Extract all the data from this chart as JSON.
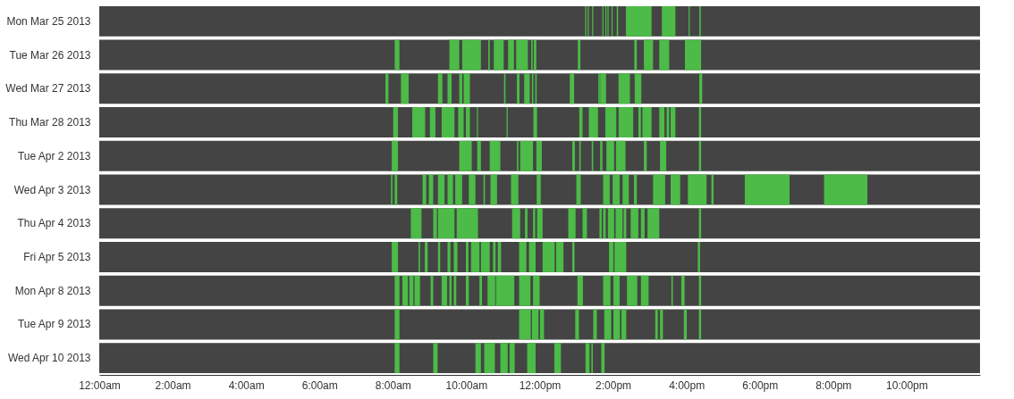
{
  "chart_data": {
    "type": "bar",
    "orientation": "horizontal",
    "grid": false,
    "legend": false,
    "categories": [
      "Mon Mar 25 2013",
      "Tue Mar 26 2013",
      "Wed Mar 27 2013",
      "Thu Mar 28 2013",
      "Tue Apr 2 2013",
      "Wed Apr 3 2013",
      "Thu Apr 4 2013",
      "Fri Apr 5 2013",
      "Mon Apr 8 2013",
      "Tue Apr 9 2013",
      "Wed Apr 10 2013"
    ],
    "xlim": [
      0,
      24
    ],
    "xticks": [
      {
        "value": 0,
        "label": "12:00am"
      },
      {
        "value": 2,
        "label": "2:00am"
      },
      {
        "value": 4,
        "label": "4:00am"
      },
      {
        "value": 6,
        "label": "6:00am"
      },
      {
        "value": 8,
        "label": "8:00am"
      },
      {
        "value": 10,
        "label": "10:00am"
      },
      {
        "value": 12,
        "label": "12:00pm"
      },
      {
        "value": 14,
        "label": "2:00pm"
      },
      {
        "value": 16,
        "label": "4:00pm"
      },
      {
        "value": 18,
        "label": "6:00pm"
      },
      {
        "value": 20,
        "label": "8:00pm"
      },
      {
        "value": 22,
        "label": "10:00pm"
      }
    ],
    "series": [
      {
        "color": "#444444",
        "base": [
          0,
          0,
          0,
          0,
          0,
          0,
          0,
          0,
          0,
          0,
          0
        ],
        "values": [
          24,
          24,
          24,
          24,
          24,
          24,
          24,
          24,
          24,
          24,
          24
        ]
      },
      {
        "color": "#4cbb47",
        "base": [
          13.24,
          8.05,
          7.8,
          8.01,
          7.97,
          7.95,
          8.49,
          7.97,
          8.05,
          8.05,
          8.05
        ],
        "values": [
          0.03,
          0.13,
          0.08,
          0.13,
          0.17,
          0.04,
          0.29,
          0.17,
          0.13,
          0.13,
          0.13
        ]
      },
      {
        "color": "#4cbb47",
        "base": [
          13.31,
          9.54,
          8.22,
          8.53,
          9.81,
          8.05,
          9.1,
          8.7,
          8.26,
          11.44,
          9.1
        ],
        "values": [
          0.03,
          0.27,
          0.21,
          0.35,
          0.34,
          0.07,
          0.1,
          0.04,
          0.15,
          0.32,
          0.12
        ]
      },
      {
        "color": "#4cbb47",
        "base": [
          13.43,
          9.89,
          9.23,
          9.01,
          10.3,
          8.81,
          9.23,
          8.87,
          8.45,
          11.79,
          10.25
        ],
        "values": [
          0.03,
          0.51,
          0.12,
          0.15,
          0.1,
          0.1,
          0.45,
          0.08,
          0.11,
          0.18,
          0.15
        ]
      },
      {
        "color": "#4cbb47",
        "base": [
          13.71,
          10.6,
          9.49,
          9.33,
          10.64,
          8.98,
          9.74,
          9.23,
          8.59,
          12.01,
          10.49
        ],
        "values": [
          0.03,
          0.04,
          0.11,
          0.35,
          0.29,
          0.12,
          0.58,
          0.06,
          0.15,
          0.11,
          0.29
        ]
      },
      {
        "color": "#4cbb47",
        "base": [
          13.79,
          10.75,
          9.81,
          9.78,
          11.38,
          9.23,
          11.25,
          9.49,
          9.03,
          12.97,
          10.93
        ],
        "values": [
          0.03,
          0.27,
          0.08,
          0.15,
          0.04,
          0.18,
          0.22,
          0.08,
          0.07,
          0.1,
          0.2
        ]
      },
      {
        "color": "#4cbb47",
        "base": [
          13.85,
          11.14,
          9.93,
          9.99,
          11.47,
          9.49,
          11.6,
          9.66,
          9.33,
          13.46,
          11.18
        ],
        "values": [
          0.03,
          0.16,
          0.17,
          0.11,
          0.35,
          0.15,
          0.07,
          0.1,
          0.15,
          0.1,
          0.14
        ]
      },
      {
        "color": "#4cbb47",
        "base": [
          13.96,
          11.36,
          11.03,
          10.29,
          11.91,
          9.7,
          11.82,
          9.99,
          9.54,
          13.76,
          11.66
        ],
        "values": [
          0.03,
          0.32,
          0.04,
          0.03,
          0.15,
          0.19,
          0.06,
          0.07,
          0.06,
          0.19,
          0.23
        ]
      },
      {
        "color": "#4cbb47",
        "base": [
          14.1,
          11.77,
          11.38,
          11.1,
          12.89,
          10.07,
          11.93,
          10.13,
          9.66,
          14.01,
          12.4
        ],
        "values": [
          0.04,
          0.04,
          0.07,
          0.03,
          0.07,
          0.18,
          0.15,
          0.23,
          0.07,
          0.18,
          0.18
        ]
      },
      {
        "color": "#4cbb47",
        "base": [
          14.35,
          11.84,
          11.58,
          11.83,
          13.08,
          10.47,
          12.78,
          10.4,
          9.99,
          14.23,
          13.25
        ],
        "values": [
          0.7,
          0.07,
          0.15,
          0.1,
          0.04,
          0.04,
          0.2,
          0.24,
          0.08,
          0.13,
          0.11
        ]
      },
      {
        "color": "#4cbb47",
        "base": [
          15.33,
          13.04,
          11.79,
          13.08,
          13.42,
          10.66,
          13.17,
          10.73,
          10.36,
          15.15,
          13.41
        ],
        "values": [
          0.37,
          0.07,
          0.04,
          0.09,
          0.04,
          0.18,
          0.12,
          0.07,
          0.07,
          0.07,
          0.04
        ]
      },
      {
        "color": "#4cbb47",
        "base": [
          16.06,
          14.58,
          11.88,
          13.34,
          13.65,
          11.22,
          13.63,
          10.86,
          10.58,
          15.28,
          13.68
        ],
        "values": [
          0.03,
          0.07,
          0.04,
          0.25,
          0.06,
          0.2,
          0.06,
          0.09,
          0.21,
          0.08,
          0.09
        ]
      },
      {
        "color": "#4cbb47",
        "base": [
          16.35,
          14.84,
          12.82,
          13.79,
          13.82,
          11.92,
          13.73,
          11.44,
          10.81,
          15.93,
          null
        ],
        "values": [
          0.04,
          0.25,
          0.12,
          0.3,
          0.21,
          0.11,
          0.07,
          0.2,
          0.5,
          0.08,
          null
        ]
      },
      {
        "color": "#4cbb47",
        "base": [
          null,
          15.26,
          13.6,
          14.15,
          14.08,
          13.0,
          13.86,
          11.71,
          11.44,
          16.34,
          null
        ],
        "values": [
          null,
          0.27,
          0.04,
          0.4,
          0.26,
          0.12,
          0.17,
          0.18,
          0.31,
          0.06,
          null
        ]
      },
      {
        "color": "#4cbb47",
        "base": [
          null,
          15.96,
          13.65,
          14.69,
          14.84,
          13.73,
          14.07,
          12.08,
          11.82,
          null,
          null
        ],
        "values": [
          null,
          0.44,
          0.16,
          0.07,
          0.08,
          0.18,
          0.19,
          0.33,
          0.18,
          null,
          null
        ]
      },
      {
        "color": "#4cbb47",
        "base": [
          null,
          null,
          14.15,
          14.8,
          15.28,
          13.99,
          14.29,
          12.45,
          13.03,
          null,
          null
        ],
        "values": [
          null,
          null,
          0.31,
          0.25,
          0.17,
          0.19,
          0.07,
          0.2,
          0.15,
          null,
          null
        ]
      },
      {
        "color": "#4cbb47",
        "base": [
          null,
          null,
          14.59,
          15.26,
          16.34,
          14.26,
          14.48,
          12.89,
          13.73,
          null,
          null
        ],
        "values": [
          null,
          null,
          0.18,
          0.14,
          0.06,
          0.17,
          0.21,
          0.06,
          0.2,
          null,
          null
        ]
      },
      {
        "color": "#4cbb47",
        "base": [
          null,
          null,
          16.35,
          15.46,
          null,
          14.57,
          14.76,
          13.89,
          14.01,
          null,
          null
        ],
        "values": [
          null,
          null,
          0.08,
          0.07,
          null,
          0.08,
          0.1,
          0.12,
          0.17,
          null,
          null
        ]
      },
      {
        "color": "#4cbb47",
        "base": [
          null,
          null,
          null,
          15.57,
          null,
          15.09,
          14.94,
          14.04,
          14.38,
          null,
          null
        ],
        "values": [
          null,
          null,
          null,
          0.13,
          null,
          0.33,
          0.32,
          0.32,
          0.28,
          null,
          null
        ]
      },
      {
        "color": "#4cbb47",
        "base": [
          null,
          null,
          null,
          16.34,
          null,
          15.57,
          16.34,
          16.31,
          14.76,
          null,
          null
        ],
        "values": [
          null,
          null,
          null,
          0.06,
          null,
          0.26,
          0.06,
          0.06,
          0.21,
          null,
          null
        ]
      },
      {
        "color": "#4cbb47",
        "base": [
          null,
          null,
          null,
          null,
          null,
          16.04,
          null,
          null,
          15.59,
          null,
          null
        ],
        "values": [
          null,
          null,
          null,
          null,
          null,
          0.51,
          null,
          null,
          0.04,
          null,
          null
        ]
      },
      {
        "color": "#4cbb47",
        "base": [
          null,
          null,
          null,
          null,
          null,
          16.68,
          null,
          null,
          15.86,
          null,
          null
        ],
        "values": [
          null,
          null,
          null,
          null,
          null,
          0.06,
          null,
          null,
          0.09,
          null,
          null
        ]
      },
      {
        "color": "#4cbb47",
        "base": [
          null,
          null,
          null,
          null,
          null,
          17.59,
          null,
          null,
          16.34,
          null,
          null
        ],
        "values": [
          null,
          null,
          null,
          null,
          null,
          1.22,
          null,
          null,
          0.06,
          null,
          null
        ]
      },
      {
        "color": "#4cbb47",
        "base": [
          null,
          null,
          null,
          null,
          null,
          19.75,
          null,
          null,
          null,
          null,
          null
        ],
        "values": [
          null,
          null,
          null,
          null,
          null,
          1.18,
          null,
          null,
          null,
          null,
          null
        ]
      }
    ]
  }
}
